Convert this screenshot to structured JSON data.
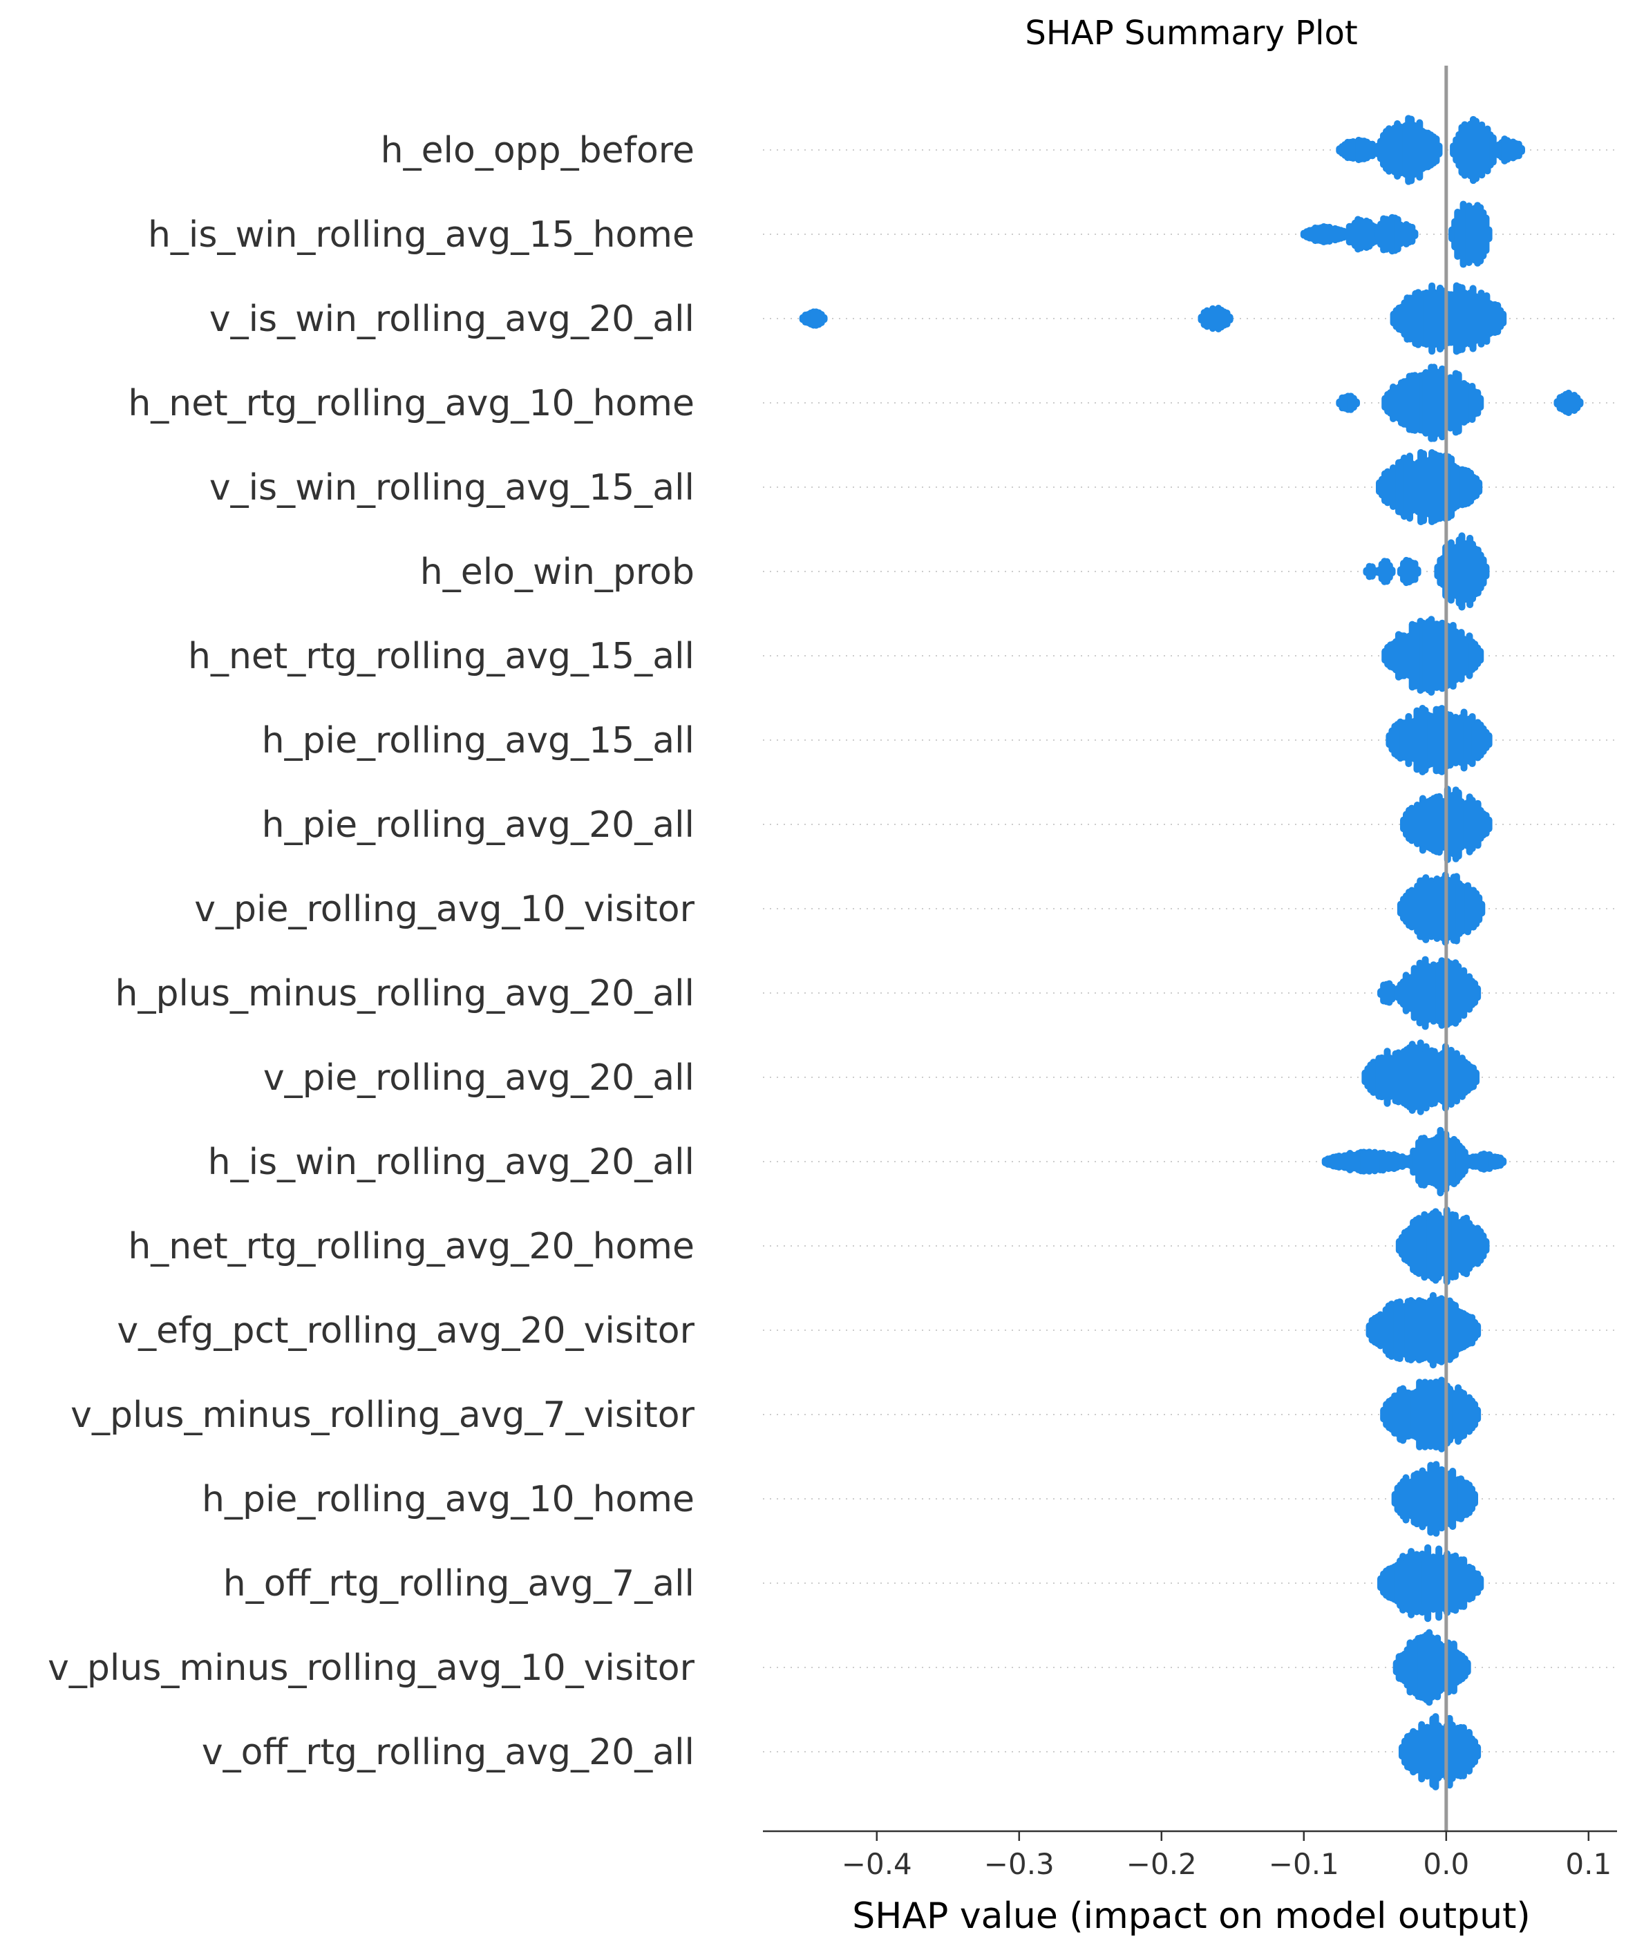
{
  "chart_data": {
    "type": "scatter",
    "title": "SHAP Summary Plot",
    "xlabel": "SHAP value (impact on model output)",
    "xlim": [
      -0.48,
      0.12
    ],
    "xticks": [
      -0.4,
      -0.3,
      -0.2,
      -0.1,
      0.0,
      0.1
    ],
    "xtick_labels": [
      "−0.4",
      "−0.3",
      "−0.2",
      "−0.1",
      "0.0",
      "0.1"
    ],
    "grid": "horizontal-dotted",
    "point_color": "#1E88E5",
    "zero_line_color": "#999999",
    "features": [
      {
        "name": "h_elo_opp_before",
        "clusters": [
          {
            "lo": -0.075,
            "hi": -0.048,
            "h": 0.25
          },
          {
            "lo": -0.048,
            "hi": -0.005,
            "h": 0.8
          },
          {
            "lo": 0.005,
            "hi": 0.035,
            "h": 0.8
          },
          {
            "lo": 0.035,
            "hi": 0.053,
            "h": 0.3
          }
        ]
      },
      {
        "name": "h_is_win_rolling_avg_15_home",
        "clusters": [
          {
            "lo": -0.1,
            "hi": -0.07,
            "h": 0.2
          },
          {
            "lo": -0.07,
            "hi": -0.048,
            "h": 0.4
          },
          {
            "lo": -0.048,
            "hi": -0.03,
            "h": 0.5
          },
          {
            "lo": -0.03,
            "hi": -0.022,
            "h": 0.3
          },
          {
            "lo": 0.004,
            "hi": 0.03,
            "h": 0.9
          }
        ]
      },
      {
        "name": "v_is_win_rolling_avg_20_all",
        "clusters": [
          {
            "lo": -0.452,
            "hi": -0.437,
            "h": 0.2
          },
          {
            "lo": -0.172,
            "hi": -0.152,
            "h": 0.3
          },
          {
            "lo": -0.037,
            "hi": 0.04,
            "h": 0.9
          }
        ]
      },
      {
        "name": "h_net_rtg_rolling_avg_10_home",
        "clusters": [
          {
            "lo": -0.075,
            "hi": -0.063,
            "h": 0.2
          },
          {
            "lo": -0.043,
            "hi": 0.024,
            "h": 0.9
          },
          {
            "lo": 0.078,
            "hi": 0.094,
            "h": 0.25
          }
        ]
      },
      {
        "name": "v_is_win_rolling_avg_15_all",
        "clusters": [
          {
            "lo": -0.047,
            "hi": 0.023,
            "h": 0.9
          }
        ]
      },
      {
        "name": "h_elo_win_prob",
        "clusters": [
          {
            "lo": -0.056,
            "hi": -0.05,
            "h": 0.2
          },
          {
            "lo": -0.047,
            "hi": -0.038,
            "h": 0.3
          },
          {
            "lo": -0.032,
            "hi": -0.02,
            "h": 0.35
          },
          {
            "lo": -0.006,
            "hi": 0.028,
            "h": 0.9
          }
        ]
      },
      {
        "name": "h_net_rtg_rolling_avg_15_all",
        "clusters": [
          {
            "lo": -0.043,
            "hi": 0.024,
            "h": 0.9
          }
        ]
      },
      {
        "name": "h_pie_rolling_avg_15_all",
        "clusters": [
          {
            "lo": -0.04,
            "hi": 0.03,
            "h": 0.9
          }
        ]
      },
      {
        "name": "h_pie_rolling_avg_20_all",
        "clusters": [
          {
            "lo": -0.03,
            "hi": 0.03,
            "h": 0.9
          }
        ]
      },
      {
        "name": "v_pie_rolling_avg_10_visitor",
        "clusters": [
          {
            "lo": -0.032,
            "hi": 0.025,
            "h": 0.9
          }
        ]
      },
      {
        "name": "h_plus_minus_rolling_avg_20_all",
        "clusters": [
          {
            "lo": -0.046,
            "hi": -0.036,
            "h": 0.3
          },
          {
            "lo": -0.034,
            "hi": 0.022,
            "h": 0.9
          }
        ]
      },
      {
        "name": "v_pie_rolling_avg_20_all",
        "clusters": [
          {
            "lo": -0.057,
            "hi": 0.021,
            "h": 0.9
          }
        ]
      },
      {
        "name": "h_is_win_rolling_avg_20_all",
        "clusters": [
          {
            "lo": -0.085,
            "hi": -0.025,
            "h": 0.25
          },
          {
            "lo": -0.025,
            "hi": 0.015,
            "h": 0.8
          },
          {
            "lo": 0.015,
            "hi": 0.04,
            "h": 0.2
          }
        ]
      },
      {
        "name": "h_net_rtg_rolling_avg_20_home",
        "clusters": [
          {
            "lo": -0.033,
            "hi": 0.028,
            "h": 0.9
          }
        ]
      },
      {
        "name": "v_efg_pct_rolling_avg_20_visitor",
        "clusters": [
          {
            "lo": -0.054,
            "hi": 0.022,
            "h": 0.9
          }
        ]
      },
      {
        "name": "v_plus_minus_rolling_avg_7_visitor",
        "clusters": [
          {
            "lo": -0.044,
            "hi": 0.022,
            "h": 0.9
          }
        ]
      },
      {
        "name": "h_pie_rolling_avg_10_home",
        "clusters": [
          {
            "lo": -0.036,
            "hi": 0.02,
            "h": 0.9
          }
        ]
      },
      {
        "name": "h_off_rtg_rolling_avg_7_all",
        "clusters": [
          {
            "lo": -0.046,
            "hi": 0.024,
            "h": 0.9
          }
        ]
      },
      {
        "name": "v_plus_minus_rolling_avg_10_visitor",
        "clusters": [
          {
            "lo": -0.035,
            "hi": 0.015,
            "h": 0.9
          }
        ]
      },
      {
        "name": "v_off_rtg_rolling_avg_20_all",
        "clusters": [
          {
            "lo": -0.031,
            "hi": 0.022,
            "h": 0.9
          }
        ]
      }
    ]
  }
}
